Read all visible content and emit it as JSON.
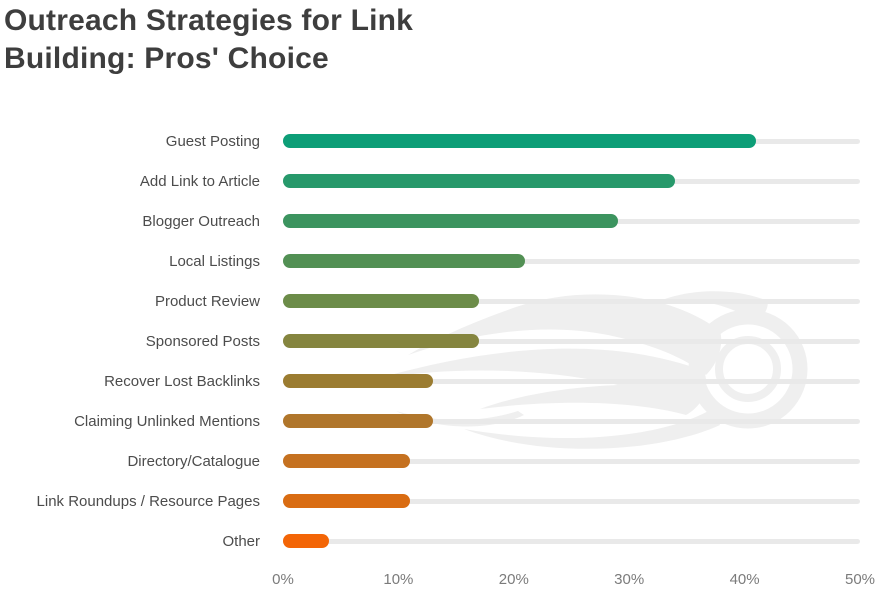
{
  "title": "Outreach Strategies for Link Building: Pros' Choice",
  "title_lines": [
    "Outreach Strategies for Link",
    "Building: Pros' Choice"
  ],
  "watermark_icon": "semrush-fireball-logo",
  "colors": {
    "title": "#3e3e3e",
    "label": "#4c4c4c",
    "tick": "#7b7b7b",
    "track": "#e9e9e9",
    "watermark": "#efefef"
  },
  "chart_data": {
    "type": "bar",
    "orientation": "horizontal",
    "title": "Outreach Strategies for Link Building: Pros' Choice",
    "categories": [
      "Guest Posting",
      "Add Link to Article",
      "Blogger Outreach",
      "Local Listings",
      "Product Review",
      "Sponsored Posts",
      "Recover Lost Backlinks",
      "Claiming Unlinked Mentions",
      "Directory/Catalogue",
      "Link Roundups / Resource Pages",
      "Other"
    ],
    "values": [
      41,
      34,
      29,
      21,
      17,
      17,
      13,
      13,
      11,
      11,
      4
    ],
    "unit": "%",
    "bar_colors": [
      "#0d9e77",
      "#27996b",
      "#3c945f",
      "#529054",
      "#6c8c49",
      "#85853f",
      "#9b7c31",
      "#b0762b",
      "#c57120",
      "#d96c12",
      "#f36506"
    ],
    "xlim": [
      0,
      50
    ],
    "x_ticks": [
      "0%",
      "10%",
      "20%",
      "30%",
      "40%",
      "50%"
    ],
    "grid": false,
    "legend": false
  }
}
